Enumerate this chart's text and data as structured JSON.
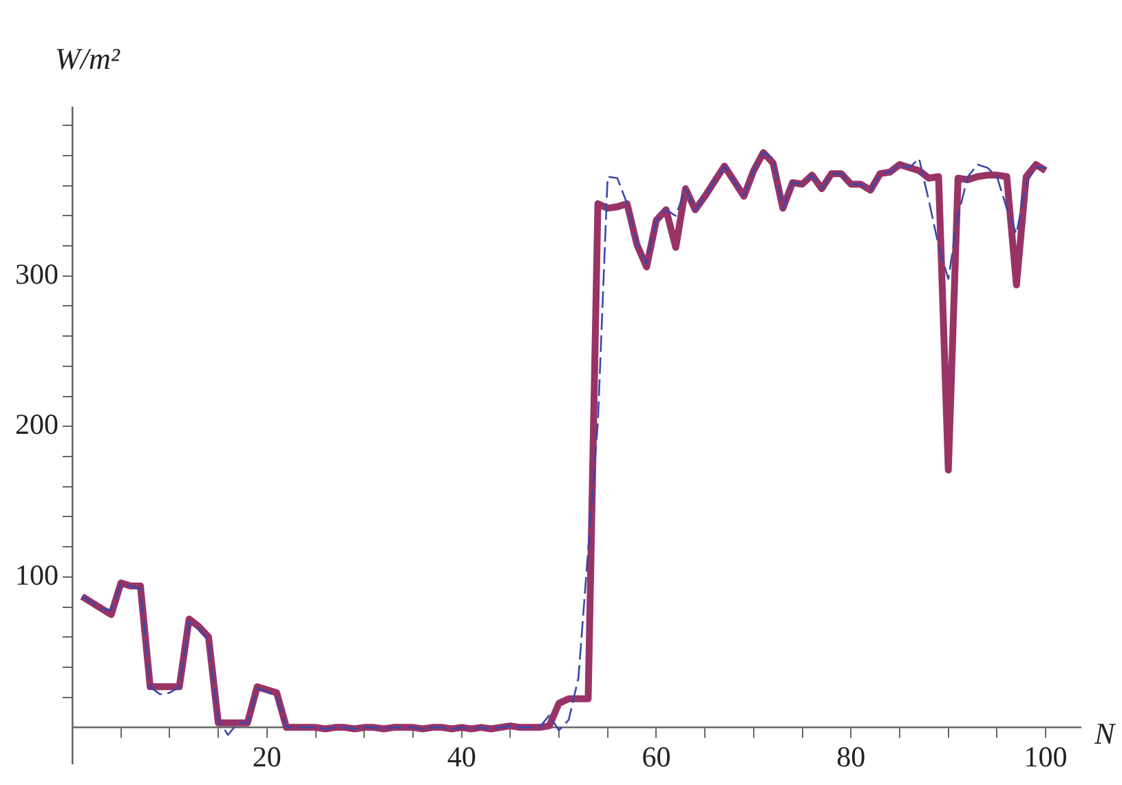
{
  "chart_data": {
    "type": "line",
    "xlabel": "N",
    "ylabel": "W/m²",
    "x": [
      1,
      2,
      3,
      4,
      5,
      6,
      7,
      8,
      9,
      10,
      11,
      12,
      13,
      14,
      15,
      16,
      17,
      18,
      19,
      20,
      21,
      22,
      23,
      24,
      25,
      26,
      27,
      28,
      29,
      30,
      31,
      32,
      33,
      34,
      35,
      36,
      37,
      38,
      39,
      40,
      41,
      42,
      43,
      44,
      45,
      46,
      47,
      48,
      49,
      50,
      51,
      52,
      53,
      54,
      55,
      56,
      57,
      58,
      59,
      60,
      61,
      62,
      63,
      64,
      65,
      66,
      67,
      68,
      69,
      70,
      71,
      72,
      73,
      74,
      75,
      76,
      77,
      78,
      79,
      80,
      81,
      82,
      83,
      84,
      85,
      86,
      87,
      88,
      89,
      90,
      91,
      92,
      93,
      94,
      95,
      96,
      97,
      98,
      99,
      100
    ],
    "series": [
      {
        "color": "#3a48a8",
        "line_style": "dashed",
        "values": [
          87,
          83,
          79,
          78,
          95,
          94,
          92,
          27,
          22,
          23,
          27,
          70,
          66,
          58,
          5,
          -5,
          3,
          3,
          26,
          24,
          20,
          0,
          0,
          0,
          0,
          -1,
          0,
          0,
          -1,
          0,
          0,
          -1,
          0,
          0,
          0,
          -1,
          0,
          0,
          -1,
          0,
          -1,
          0,
          -1,
          0,
          1,
          0,
          0,
          0,
          8,
          -2,
          5,
          33,
          118,
          203,
          366,
          365,
          348,
          322,
          308,
          337,
          344,
          340,
          358,
          344,
          353,
          363,
          373,
          363,
          353,
          370,
          382,
          378,
          345,
          362,
          361,
          367,
          358,
          368,
          368,
          361,
          361,
          357,
          368,
          369,
          374,
          372,
          378,
          350,
          320,
          298,
          340,
          366,
          374,
          372,
          366,
          345,
          328,
          362,
          372,
          372
        ]
      },
      {
        "color": "#993366",
        "line_style": "solid",
        "values": [
          87,
          83,
          79,
          75,
          96,
          94,
          94,
          27,
          27,
          27,
          27,
          72,
          67,
          60,
          3,
          3,
          3,
          3,
          27,
          25,
          23,
          0,
          0,
          0,
          0,
          -1,
          0,
          0,
          -1,
          0,
          0,
          -1,
          0,
          0,
          0,
          -1,
          0,
          0,
          -1,
          0,
          -1,
          0,
          -1,
          0,
          1,
          0,
          0,
          0,
          1,
          16,
          19,
          19,
          19,
          348,
          345,
          346,
          348,
          321,
          306,
          337,
          344,
          319,
          358,
          344,
          353,
          363,
          373,
          363,
          353,
          370,
          382,
          375,
          345,
          362,
          361,
          367,
          358,
          368,
          368,
          361,
          361,
          357,
          368,
          369,
          374,
          372,
          370,
          365,
          366,
          171,
          365,
          364,
          366,
          367,
          367,
          366,
          294,
          366,
          374,
          370
        ]
      }
    ],
    "xlim": [
      0,
      103.6
    ],
    "ylim": [
      -24,
      412
    ],
    "xticks": [
      {
        "value": 5,
        "label": null
      },
      {
        "value": 10,
        "label": null
      },
      {
        "value": 15,
        "label": null
      },
      20,
      {
        "value": 25,
        "label": null
      },
      {
        "value": 30,
        "label": null
      },
      {
        "value": 35,
        "label": null
      },
      40,
      {
        "value": 45,
        "label": null
      },
      {
        "value": 50,
        "label": null
      },
      {
        "value": 55,
        "label": null
      },
      60,
      {
        "value": 65,
        "label": null
      },
      {
        "value": 70,
        "label": null
      },
      {
        "value": 75,
        "label": null
      },
      80,
      {
        "value": 85,
        "label": null
      },
      {
        "value": 90,
        "label": null
      },
      {
        "value": 95,
        "label": null
      },
      100
    ],
    "yticks": [
      {
        "value": 20,
        "label": null
      },
      {
        "value": 40,
        "label": null
      },
      {
        "value": 60,
        "label": null
      },
      {
        "value": 80,
        "label": null
      },
      100,
      {
        "value": 120,
        "label": null
      },
      {
        "value": 140,
        "label": null
      },
      {
        "value": 160,
        "label": null
      },
      {
        "value": 180,
        "label": null
      },
      200,
      {
        "value": 220,
        "label": null
      },
      {
        "value": 240,
        "label": null
      },
      {
        "value": 260,
        "label": null
      },
      {
        "value": 280,
        "label": null
      },
      300,
      {
        "value": 320,
        "label": null
      },
      {
        "value": 340,
        "label": null
      },
      {
        "value": 360,
        "label": null
      },
      {
        "value": 380,
        "label": null
      },
      {
        "value": 400,
        "label": null
      }
    ],
    "grid": false,
    "legend": false
  }
}
